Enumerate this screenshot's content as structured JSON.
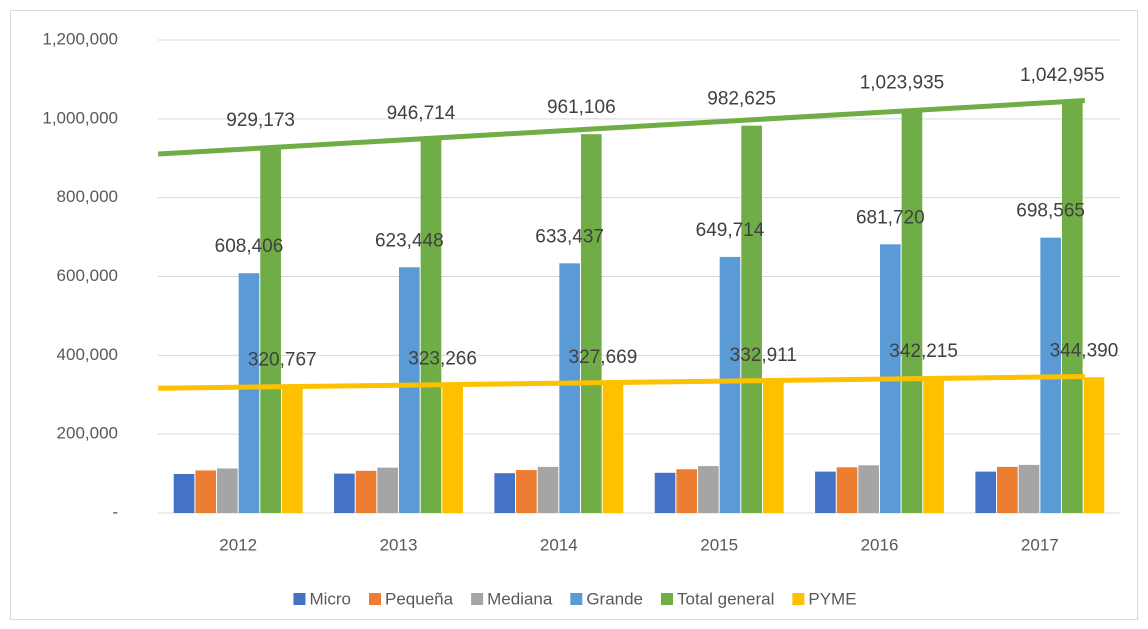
{
  "chart_data": {
    "type": "bar",
    "categories": [
      "2012",
      "2013",
      "2014",
      "2015",
      "2016",
      "2017"
    ],
    "series": [
      {
        "name": "Micro",
        "color": "#4472c4",
        "values": [
          99000,
          100000,
          101000,
          102000,
          105000,
          105000
        ]
      },
      {
        "name": "Pequeña",
        "color": "#ed7d31",
        "values": [
          108000,
          107000,
          109000,
          111000,
          116000,
          117000
        ]
      },
      {
        "name": "Mediana",
        "color": "#a5a5a5",
        "values": [
          113000,
          115000,
          117000,
          119000,
          121000,
          122000
        ]
      },
      {
        "name": "Grande",
        "color": "#5b9bd5",
        "values": [
          608406,
          623448,
          633437,
          649714,
          681720,
          698565
        ],
        "value_labels": [
          "608,406",
          "623,448",
          "633,437",
          "649,714",
          "681,720",
          "698,565"
        ]
      },
      {
        "name": "Total general",
        "color": "#70ad47",
        "values": [
          929173,
          946714,
          961106,
          982625,
          1023935,
          1042955
        ],
        "value_labels": [
          "929,173",
          "946,714",
          "961,106",
          "982,625",
          "1,023,935",
          "1,042,955"
        ],
        "trendline": true
      },
      {
        "name": "PYME",
        "color": "#ffc000",
        "values": [
          320767,
          323266,
          327669,
          332911,
          342215,
          344390
        ],
        "value_labels": [
          "320,767",
          "323,266",
          "327,669",
          "332,911",
          "342,215",
          "344,390"
        ],
        "trendline": true
      }
    ],
    "ylim": [
      0,
      1200000
    ],
    "yticks": [
      {
        "value": 0,
        "label": "-"
      },
      {
        "value": 200000,
        "label": "200,000"
      },
      {
        "value": 400000,
        "label": "400,000"
      },
      {
        "value": 600000,
        "label": "600,000"
      },
      {
        "value": 800000,
        "label": "800,000"
      },
      {
        "value": 1000000,
        "label": "1,000,000"
      },
      {
        "value": 1200000,
        "label": "1,200,000"
      }
    ],
    "grid": true,
    "legend": "bottom"
  }
}
